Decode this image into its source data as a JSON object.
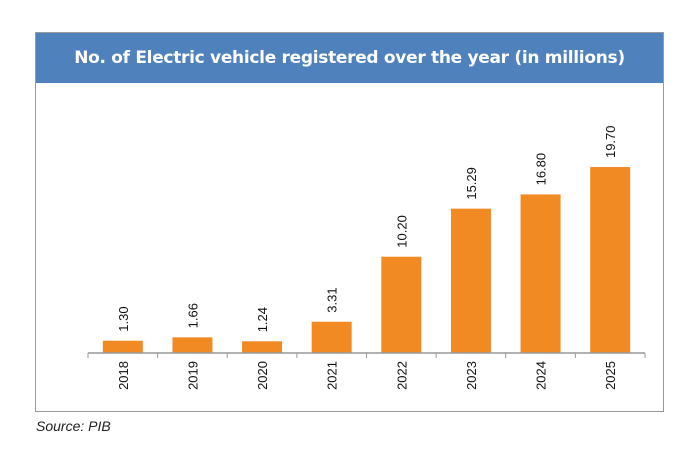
{
  "chart_data": {
    "type": "bar",
    "title": "No. of Electric vehicle registered over the year (in millions)",
    "categories": [
      "2018",
      "2019",
      "2020",
      "2021",
      "2022",
      "2023",
      "2024",
      "2025"
    ],
    "values": [
      1.3,
      1.66,
      1.24,
      3.31,
      10.2,
      15.29,
      16.8,
      19.7
    ],
    "data_labels": [
      "1.30",
      "1.66",
      "1.24",
      "3.31",
      "10.20",
      "15.29",
      "16.80",
      "19.70"
    ],
    "xlabel": "",
    "ylabel": "",
    "ylim": [
      0,
      25
    ],
    "grid": false,
    "y_axis_visible": false,
    "bar_color": "#f28a24",
    "header_color": "#4f81bd"
  },
  "source": "Source: PIB"
}
